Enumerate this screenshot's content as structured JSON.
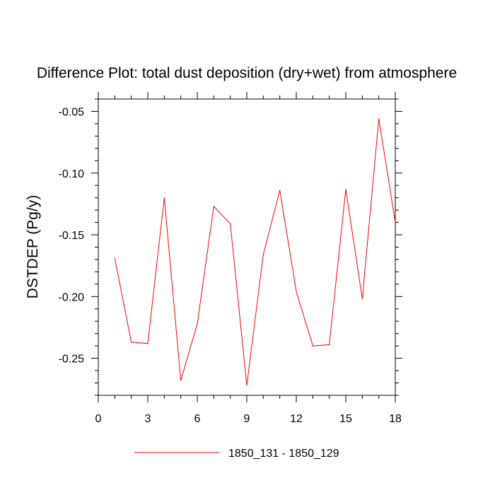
{
  "chart_data": {
    "type": "line",
    "title": "Difference Plot: total dust deposition (dry+wet) from atmosphere",
    "xlabel": "",
    "ylabel": "DSTDEP  (Pg/y)",
    "xlim": [
      0,
      18
    ],
    "ylim": [
      -0.28,
      -0.04
    ],
    "xticks": [
      0,
      3,
      6,
      9,
      12,
      15,
      18
    ],
    "xtick_labels": [
      "0",
      "3",
      "6",
      "9",
      "12",
      "15",
      "18"
    ],
    "yticks": [
      -0.25,
      -0.2,
      -0.15,
      -0.1,
      -0.05
    ],
    "ytick_labels": [
      "-0.25",
      "-0.20",
      "-0.15",
      "-0.10",
      "-0.05"
    ],
    "grid": false,
    "legend_position": "bottom-center",
    "series": [
      {
        "name": "1850_131 - 1850_129",
        "color": "#ff0000",
        "x": [
          1,
          2,
          3,
          4,
          5,
          6,
          7,
          8,
          9,
          10,
          11,
          12,
          13,
          14,
          15,
          16,
          17,
          18
        ],
        "y": [
          -0.169,
          -0.237,
          -0.238,
          -0.12,
          -0.268,
          -0.222,
          -0.127,
          -0.141,
          -0.272,
          -0.166,
          -0.114,
          -0.196,
          -0.24,
          -0.239,
          -0.113,
          -0.202,
          -0.056,
          -0.14
        ]
      }
    ]
  }
}
